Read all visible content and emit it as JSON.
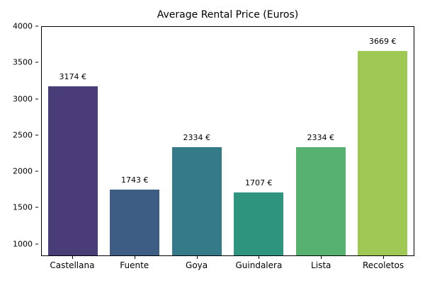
{
  "title": "Average Rental Price (Euros)",
  "chart_data": {
    "type": "bar",
    "title": "Average Rental Price (Euros)",
    "xlabel": "",
    "ylabel": "",
    "categories": [
      "Castellana",
      "Fuente",
      "Goya",
      "Guindalera",
      "Lista",
      "Recoletos"
    ],
    "values": [
      3174,
      1743,
      2334,
      1707,
      2334,
      3669
    ],
    "value_labels": [
      "3174 €",
      "1743 €",
      "2334 €",
      "1707 €",
      "2334 €",
      "3669 €"
    ],
    "bar_colors": [
      "#4a3c76",
      "#3e5d84",
      "#347a88",
      "#2e947e",
      "#57b271",
      "#9fc855"
    ],
    "ylim": [
      830,
      4000
    ],
    "yticks": [
      1000,
      1500,
      2000,
      2500,
      3000,
      3500,
      4000
    ],
    "grid": false,
    "legend": null,
    "background": "#ffffff",
    "spine_color": "#000000"
  }
}
